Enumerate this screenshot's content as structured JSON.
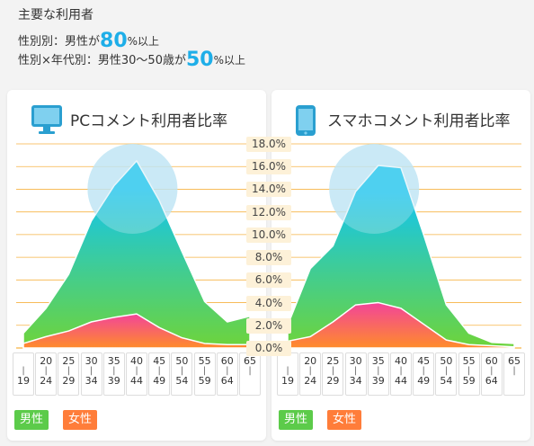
{
  "header": {
    "title": "主要な利用者",
    "line1": {
      "prefix": "性別別：男性が",
      "value": "80",
      "suffix": "%以上"
    },
    "line2": {
      "prefix": "性別×年代別：男性30〜50歳が",
      "value": "50",
      "suffix": "%以上"
    }
  },
  "colors": {
    "male_top": "#12c5ef",
    "male_bottom": "#6ed43a",
    "female_top": "#f2449a",
    "female_bottom": "#ff8c2a",
    "grid": "#f5a623",
    "highlight": "#bfe5f4"
  },
  "chart_data": [
    {
      "type": "area",
      "title": "PCコメント利用者比率",
      "icon": "monitor-icon",
      "categories": [
        [
          "",
          "19"
        ],
        [
          "20",
          "24"
        ],
        [
          "25",
          "29"
        ],
        [
          "30",
          "34"
        ],
        [
          "35",
          "39"
        ],
        [
          "40",
          "44"
        ],
        [
          "45",
          "49"
        ],
        [
          "50",
          "54"
        ],
        [
          "55",
          "59"
        ],
        [
          "60",
          "64"
        ],
        [
          "65",
          ""
        ]
      ],
      "yticks": [
        "18.0%",
        "16.0%",
        "14.0%",
        "12.0%",
        "10.0%",
        "8.0%",
        "6.0%",
        "4.0%",
        "2.0%",
        "0.0%"
      ],
      "ylim": [
        0,
        18
      ],
      "series": [
        {
          "name": "男性",
          "values": [
            1.3,
            3.5,
            6.5,
            11.2,
            14.3,
            16.5,
            13.0,
            8.5,
            4.1,
            2.3,
            2.8
          ]
        },
        {
          "name": "女性",
          "values": [
            0.4,
            1.0,
            1.5,
            2.3,
            2.7,
            3.0,
            1.8,
            0.9,
            0.4,
            0.3,
            0.3
          ]
        }
      ],
      "legend": [
        "男性",
        "女性"
      ]
    },
    {
      "type": "area",
      "title": "スマホコメント利用者比率",
      "icon": "smartphone-icon",
      "categories": [
        [
          "",
          "19"
        ],
        [
          "20",
          "24"
        ],
        [
          "25",
          "29"
        ],
        [
          "30",
          "34"
        ],
        [
          "35",
          "39"
        ],
        [
          "40",
          "44"
        ],
        [
          "45",
          "49"
        ],
        [
          "50",
          "54"
        ],
        [
          "55",
          "59"
        ],
        [
          "60",
          "64"
        ],
        [
          "65",
          ""
        ]
      ],
      "yticks": [
        "18.0%",
        "16.0%",
        "14.0%",
        "12.0%",
        "10.0%",
        "8.0%",
        "6.0%",
        "4.0%",
        "2.0%",
        "0.0%"
      ],
      "ylim": [
        0,
        18
      ],
      "series": [
        {
          "name": "男性",
          "values": [
            2.0,
            7.0,
            9.0,
            13.8,
            16.1,
            15.9,
            10.0,
            3.8,
            1.3,
            0.5,
            0.4
          ]
        },
        {
          "name": "女性",
          "values": [
            0.6,
            1.0,
            2.3,
            3.8,
            4.0,
            3.5,
            2.1,
            0.7,
            0.3,
            0.2,
            0.1
          ]
        }
      ],
      "legend": [
        "男性",
        "女性"
      ]
    }
  ]
}
